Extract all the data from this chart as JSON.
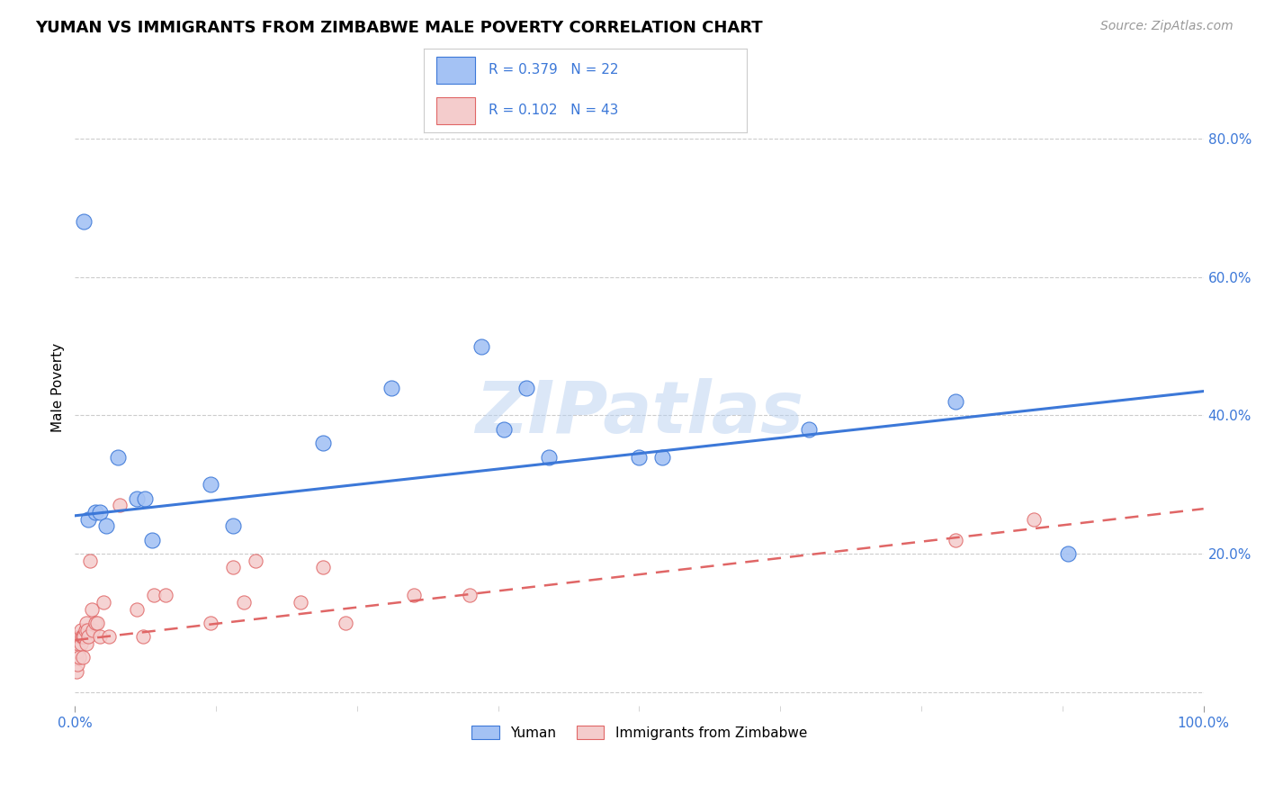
{
  "title": "YUMAN VS IMMIGRANTS FROM ZIMBABWE MALE POVERTY CORRELATION CHART",
  "source": "Source: ZipAtlas.com",
  "ylabel": "Male Poverty",
  "yticks": [
    0.0,
    0.2,
    0.4,
    0.6,
    0.8
  ],
  "ytick_labels": [
    "",
    "20.0%",
    "40.0%",
    "60.0%",
    "80.0%"
  ],
  "xlim": [
    0.0,
    1.0
  ],
  "ylim": [
    -0.02,
    0.9
  ],
  "background_color": "#ffffff",
  "watermark": "ZIPatlas",
  "blue_scatter_x": [
    0.008,
    0.012,
    0.018,
    0.022,
    0.028,
    0.038,
    0.055,
    0.062,
    0.068,
    0.12,
    0.14,
    0.22,
    0.28,
    0.36,
    0.38,
    0.42,
    0.52,
    0.65,
    0.78,
    0.88,
    0.4,
    0.5
  ],
  "blue_scatter_y": [
    0.68,
    0.25,
    0.26,
    0.26,
    0.24,
    0.34,
    0.28,
    0.28,
    0.22,
    0.3,
    0.24,
    0.36,
    0.44,
    0.5,
    0.38,
    0.34,
    0.34,
    0.38,
    0.42,
    0.2,
    0.44,
    0.34
  ],
  "pink_scatter_x": [
    0.001,
    0.001,
    0.002,
    0.002,
    0.003,
    0.003,
    0.004,
    0.004,
    0.005,
    0.005,
    0.006,
    0.007,
    0.007,
    0.008,
    0.009,
    0.01,
    0.01,
    0.011,
    0.012,
    0.013,
    0.015,
    0.016,
    0.018,
    0.02,
    0.022,
    0.025,
    0.03,
    0.04,
    0.055,
    0.06,
    0.07,
    0.08,
    0.12,
    0.14,
    0.15,
    0.16,
    0.2,
    0.22,
    0.24,
    0.3,
    0.35,
    0.78,
    0.85
  ],
  "pink_scatter_y": [
    0.03,
    0.05,
    0.04,
    0.06,
    0.06,
    0.07,
    0.05,
    0.08,
    0.07,
    0.09,
    0.08,
    0.05,
    0.08,
    0.08,
    0.09,
    0.1,
    0.07,
    0.09,
    0.08,
    0.19,
    0.12,
    0.09,
    0.1,
    0.1,
    0.08,
    0.13,
    0.08,
    0.27,
    0.12,
    0.08,
    0.14,
    0.14,
    0.1,
    0.18,
    0.13,
    0.19,
    0.13,
    0.18,
    0.1,
    0.14,
    0.14,
    0.22,
    0.25
  ],
  "blue_line_x": [
    0.0,
    1.0
  ],
  "blue_line_y_start": 0.255,
  "blue_line_y_end": 0.435,
  "pink_line_x": [
    0.0,
    1.0
  ],
  "pink_line_y_start": 0.075,
  "pink_line_y_end": 0.265,
  "blue_color": "#a4c2f4",
  "blue_line_color": "#3c78d8",
  "pink_color": "#f4cccc",
  "pink_line_color": "#e06666",
  "legend_blue_r": "R = 0.379",
  "legend_blue_n": "N = 22",
  "legend_pink_r": "R = 0.102",
  "legend_pink_n": "N = 43",
  "legend_label_blue": "Yuman",
  "legend_label_pink": "Immigrants from Zimbabwe",
  "title_fontsize": 13,
  "axis_label_fontsize": 11,
  "tick_fontsize": 11,
  "source_fontsize": 10,
  "legend_fontsize": 12
}
